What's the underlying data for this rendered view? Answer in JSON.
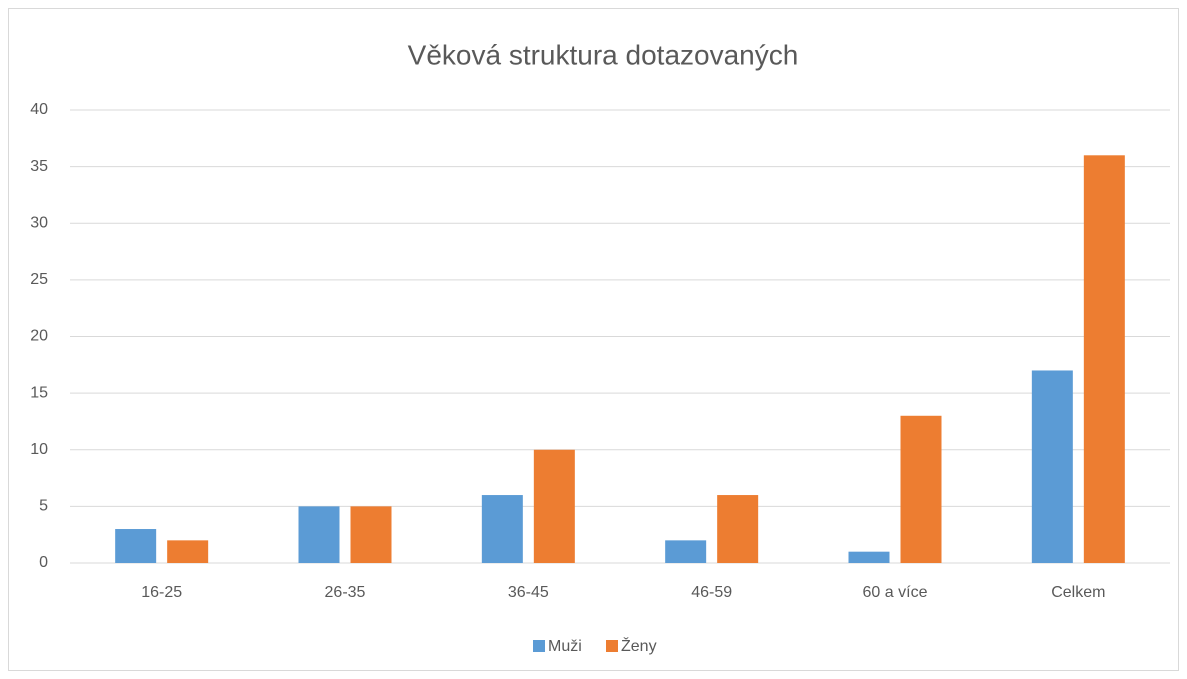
{
  "chart_data": {
    "type": "bar",
    "title": "Věková struktura dotazovaných",
    "categories": [
      "16-25",
      "26-35",
      "36-45",
      "46-59",
      "60 a více",
      "Celkem"
    ],
    "series": [
      {
        "name": "Muži",
        "color": "#5b9bd5",
        "values": [
          3,
          5,
          6,
          2,
          1,
          17
        ]
      },
      {
        "name": "Ženy",
        "color": "#ed7d31",
        "values": [
          2,
          5,
          10,
          6,
          13,
          36
        ]
      }
    ],
    "ylim": [
      0,
      40
    ],
    "yticks": [
      0,
      5,
      10,
      15,
      20,
      25,
      30,
      35,
      40
    ],
    "grid": true,
    "legend": "bottom"
  }
}
